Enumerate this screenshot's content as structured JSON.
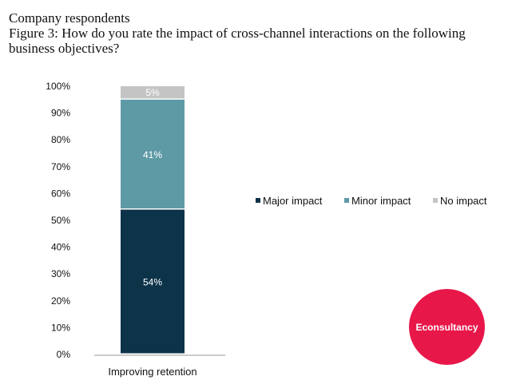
{
  "header": {
    "respondents": "Company respondents",
    "title": "Figure 3: How do you rate the impact of cross-channel interactions on the following business objectives?"
  },
  "chart_data": {
    "type": "bar",
    "stacked": true,
    "orientation": "vertical",
    "categories": [
      "Improving retention"
    ],
    "series": [
      {
        "name": "Major impact",
        "values": [
          54
        ],
        "color": "#0d3349",
        "label": "54%"
      },
      {
        "name": "Minor impact",
        "values": [
          41
        ],
        "color": "#5e9aa6",
        "label": "41%"
      },
      {
        "name": "No impact",
        "values": [
          5
        ],
        "color": "#c4c4c4",
        "label": "5%"
      }
    ],
    "yticks": [
      "0%",
      "10%",
      "20%",
      "30%",
      "40%",
      "50%",
      "60%",
      "70%",
      "80%",
      "90%",
      "100%"
    ],
    "ylim": [
      0,
      100
    ],
    "grid": false,
    "legend": "right"
  },
  "brand": {
    "logo_text": "Econsultancy",
    "color": "#e8174a"
  }
}
